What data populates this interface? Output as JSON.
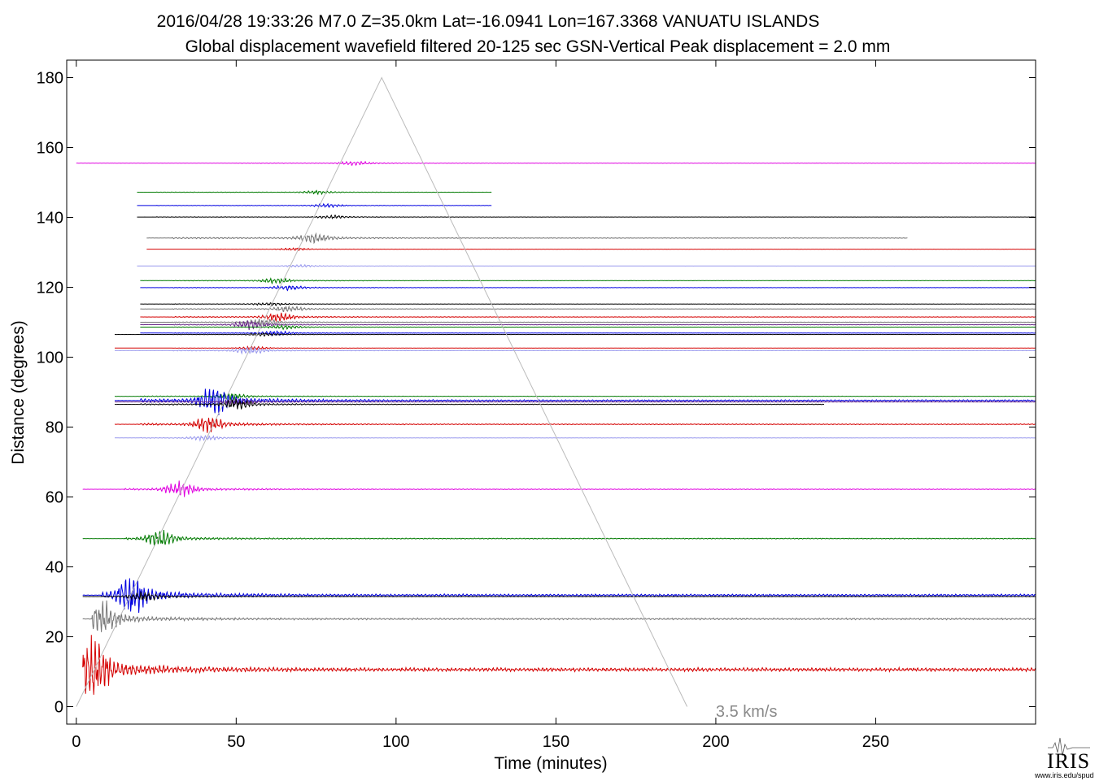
{
  "header": {
    "line1": "2016/04/28  19:33:26  M7.0  Z=35.0km  Lat=-16.0941 Lon=167.3368  VANUATU ISLANDS",
    "line2": "Global displacement wavefield     filtered 20-125 sec    GSN-Vertical    Peak displacement = 2.0 mm"
  },
  "logo": {
    "name": "IRIS",
    "url": "www.iris.edu/spud"
  },
  "chart_data": {
    "type": "line",
    "title": "2016/04/28  19:33:26  M7.0  Z=35.0km  Lat=-16.0941 Lon=167.3368  VANUATU ISLANDS",
    "subtitle": "Global displacement wavefield     filtered 20-125 sec    GSN-Vertical    Peak displacement = 2.0 mm",
    "xlabel": "Time (minutes)",
    "ylabel": "Distance (degrees)",
    "xlim": [
      -3,
      300
    ],
    "ylim": [
      -5,
      185
    ],
    "xticks": [
      0,
      50,
      100,
      150,
      200,
      250
    ],
    "yticks": [
      0,
      20,
      40,
      60,
      80,
      100,
      120,
      140,
      160,
      180
    ],
    "grid": false,
    "colors": {
      "red": "#d40000",
      "green": "#007a00",
      "blue": "#0000e0",
      "black": "#000000",
      "gray": "#777777",
      "magenta": "#e000e0",
      "lavender": "#9a9aee",
      "purple": "#6a2a8a",
      "reference_line": "#bbbbbb"
    },
    "annotations": [
      {
        "text": "3.5 km/s",
        "x": 200,
        "y": -2
      }
    ],
    "reference_line": {
      "name": "3.5 km/s",
      "x": [
        0,
        95.5,
        191
      ],
      "y": [
        0,
        180,
        0
      ]
    },
    "series": [
      {
        "distance": 155.5,
        "color": "magenta",
        "start": 0,
        "end": 300,
        "onset": 50,
        "amp": 0.5,
        "peak": 87
      },
      {
        "distance": 147.2,
        "color": "green",
        "start": 19,
        "end": 130,
        "onset": 25,
        "amp": 0.4,
        "peak": 75
      },
      {
        "distance": 143.4,
        "color": "blue",
        "start": 19,
        "end": 130,
        "onset": 25,
        "amp": 0.4,
        "peak": 78
      },
      {
        "distance": 140.1,
        "color": "black",
        "start": 19,
        "end": 300,
        "onset": 25,
        "amp": 0.4,
        "peak": 80
      },
      {
        "distance": 134.1,
        "color": "gray",
        "start": 22,
        "end": 260,
        "onset": 30,
        "amp": 1.2,
        "peak": 74
      },
      {
        "distance": 130.9,
        "color": "red",
        "start": 22,
        "end": 300,
        "onset": 40,
        "amp": 0.3,
        "peak": 68
      },
      {
        "distance": 126.1,
        "color": "lavender",
        "start": 19,
        "end": 300,
        "onset": 40,
        "amp": 0.3,
        "peak": 70
      },
      {
        "distance": 121.9,
        "color": "green",
        "start": 20,
        "end": 300,
        "onset": 30,
        "amp": 0.6,
        "peak": 62
      },
      {
        "distance": 119.9,
        "color": "blue",
        "start": 20,
        "end": 300,
        "onset": 30,
        "amp": 0.6,
        "peak": 66
      },
      {
        "distance": 115.2,
        "color": "black",
        "start": 20,
        "end": 300,
        "onset": 30,
        "amp": 0.4,
        "peak": 60
      },
      {
        "distance": 113.8,
        "color": "gray",
        "start": 20,
        "end": 300,
        "onset": 30,
        "amp": 0.7,
        "peak": 66
      },
      {
        "distance": 111.5,
        "color": "red",
        "start": 20,
        "end": 300,
        "onset": 30,
        "amp": 0.9,
        "peak": 63
      },
      {
        "distance": 110.0,
        "color": "gray",
        "start": 20,
        "end": 300,
        "onset": 30,
        "amp": 0.8,
        "peak": 58
      },
      {
        "distance": 109.3,
        "color": "purple",
        "start": 20,
        "end": 300,
        "onset": 30,
        "amp": 1.0,
        "peak": 54
      },
      {
        "distance": 108.6,
        "color": "green",
        "start": 20,
        "end": 300,
        "onset": 30,
        "amp": 0.5,
        "peak": 65
      },
      {
        "distance": 106.9,
        "color": "blue",
        "start": 20,
        "end": 300,
        "onset": 30,
        "amp": 0.5,
        "peak": 62
      },
      {
        "distance": 106.5,
        "color": "black",
        "start": 12,
        "end": 300,
        "onset": 30,
        "amp": 0.4,
        "peak": 58
      },
      {
        "distance": 102.6,
        "color": "red",
        "start": 12,
        "end": 300,
        "onset": 30,
        "amp": 0.4,
        "peak": 55
      },
      {
        "distance": 101.9,
        "color": "lavender",
        "start": 12,
        "end": 300,
        "onset": 30,
        "amp": 0.8,
        "peak": 54
      },
      {
        "distance": 88.8,
        "color": "green",
        "start": 12,
        "end": 300,
        "onset": 20,
        "amp": 0.8,
        "peak": 48
      },
      {
        "distance": 87.6,
        "color": "blue",
        "start": 12,
        "end": 300,
        "onset": 20,
        "amp": 3.2,
        "peak": 43
      },
      {
        "distance": 87.2,
        "color": "purple",
        "start": 12,
        "end": 300,
        "onset": 20,
        "amp": 0.8,
        "peak": 50
      },
      {
        "distance": 86.5,
        "color": "black",
        "start": 12,
        "end": 234,
        "onset": 20,
        "amp": 1.2,
        "peak": 50
      },
      {
        "distance": 80.8,
        "color": "red",
        "start": 12,
        "end": 300,
        "onset": 20,
        "amp": 1.8,
        "peak": 41
      },
      {
        "distance": 76.9,
        "color": "lavender",
        "start": 12,
        "end": 300,
        "onset": 20,
        "amp": 0.6,
        "peak": 40
      },
      {
        "distance": 62.2,
        "color": "magenta",
        "start": 2,
        "end": 300,
        "onset": 15,
        "amp": 1.6,
        "peak": 32
      },
      {
        "distance": 48.1,
        "color": "green",
        "start": 2,
        "end": 300,
        "onset": 15,
        "amp": 1.8,
        "peak": 26
      },
      {
        "distance": 31.9,
        "color": "blue",
        "start": 2,
        "end": 300,
        "onset": 8,
        "amp": 4.5,
        "peak": 17
      },
      {
        "distance": 31.5,
        "color": "black",
        "start": 2,
        "end": 300,
        "onset": 8,
        "amp": 1.0,
        "peak": 21
      },
      {
        "distance": 25.1,
        "color": "gray",
        "start": 2,
        "end": 300,
        "onset": 5,
        "amp": 3.5,
        "peak": 8
      },
      {
        "distance": 10.6,
        "color": "red",
        "start": 2,
        "end": 300,
        "onset": 2,
        "amp": 7.5,
        "peak": 5
      }
    ]
  }
}
